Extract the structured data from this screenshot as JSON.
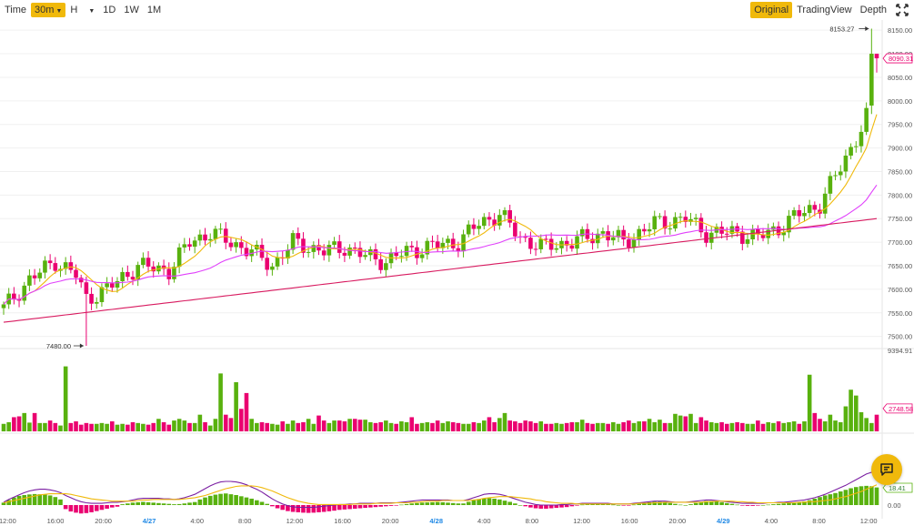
{
  "toolbar": {
    "time_label": "Time",
    "intervals": [
      {
        "label": "30m",
        "active": true,
        "dropdown": true
      },
      {
        "label": "H",
        "active": false,
        "dropdown": true
      },
      {
        "label": "1D",
        "active": false,
        "dropdown": false
      },
      {
        "label": "1W",
        "active": false,
        "dropdown": false
      },
      {
        "label": "1M",
        "active": false,
        "dropdown": false
      }
    ],
    "views": [
      {
        "label": "Original",
        "active": true
      },
      {
        "label": "TradingView",
        "active": false
      },
      {
        "label": "Depth",
        "active": false
      }
    ],
    "expand_icon": "expand-icon"
  },
  "chat_icon": "chat-icon",
  "colors": {
    "up": "#58b10e",
    "down": "#ea0070",
    "ma_short": "#f0b90b",
    "ma_mid": "#e040fb",
    "ma_long": "#d81b60",
    "signal": "#7b1fa2",
    "accent": "#f0b90b",
    "date_tick": "#1e88e5"
  },
  "chart_data": {
    "type": "candlestick",
    "interval": "30m",
    "price_axis": {
      "ticks": [
        "8150.00",
        "8100.00",
        "8050.00",
        "8000.00",
        "7950.00",
        "7900.00",
        "7850.00",
        "7800.00",
        "7750.00",
        "7700.00",
        "7650.00",
        "7600.00",
        "7550.00",
        "7500.00"
      ],
      "range": [
        7480,
        8160
      ]
    },
    "time_axis": {
      "ticks": [
        {
          "label": "12:00",
          "date": false
        },
        {
          "label": "16:00",
          "date": false
        },
        {
          "label": "20:00",
          "date": false
        },
        {
          "label": "4/27",
          "date": true
        },
        {
          "label": "4:00",
          "date": false
        },
        {
          "label": "8:00",
          "date": false
        },
        {
          "label": "12:00",
          "date": false
        },
        {
          "label": "16:00",
          "date": false
        },
        {
          "label": "20:00",
          "date": false
        },
        {
          "label": "4/28",
          "date": true
        },
        {
          "label": "4:00",
          "date": false
        },
        {
          "label": "8:00",
          "date": false
        },
        {
          "label": "12:00",
          "date": false
        },
        {
          "label": "16:00",
          "date": false
        },
        {
          "label": "20:00",
          "date": false
        },
        {
          "label": "4/29",
          "date": true
        },
        {
          "label": "4:00",
          "date": false
        },
        {
          "label": "8:00",
          "date": false
        },
        {
          "label": "12:00",
          "date": false
        }
      ]
    },
    "annotations": {
      "high_label": "8153.27",
      "low_label": "7480.00",
      "high": 8153.27,
      "low": 7480.0
    },
    "last_price_label": "8090.31",
    "last_price": 8090.31,
    "volume": {
      "max_label": "9394.91",
      "max": 9394.91,
      "last_label": "2748.58",
      "last": 2748.58,
      "values": [
        900,
        1100,
        1700,
        1800,
        2200,
        1050,
        2200,
        1000,
        1000,
        1300,
        1000,
        700,
        7800,
        1000,
        1200,
        800,
        1000,
        900,
        900,
        1000,
        900,
        1200,
        800,
        900,
        800,
        1100,
        1000,
        900,
        800,
        1000,
        1500,
        1100,
        800,
        1300,
        1500,
        1300,
        1000,
        1000,
        2000,
        1100,
        700,
        1500,
        6950,
        2000,
        1600,
        5900,
        2700,
        4600,
        1500,
        1000,
        1100,
        1000,
        900,
        800,
        1200,
        900,
        1300,
        1000,
        1100,
        1500,
        900,
        1900,
        1300,
        1000,
        1300,
        1300,
        1200,
        1500,
        1500,
        1400,
        1400,
        1100,
        1000,
        1100,
        1300,
        1000,
        900,
        1200,
        1100,
        1700,
        900,
        1000,
        1100,
        1000,
        1300,
        1000,
        1200,
        1100,
        1000,
        900,
        900,
        1100,
        1000,
        1300,
        1700,
        1100,
        1600,
        2200,
        1300,
        1200,
        1000,
        1300,
        1200,
        1000,
        1200,
        900,
        900,
        1000,
        900,
        1000,
        1100,
        1100,
        1400,
        1000,
        900,
        1000,
        1000,
        900,
        1100,
        900,
        1100,
        1300,
        1000,
        1200,
        1200,
        1500,
        1100,
        1400,
        1000,
        1000,
        2100,
        1900,
        1800,
        2100,
        1000,
        1700,
        1300,
        1100,
        1000,
        1100,
        900,
        1000,
        1100,
        1000,
        900,
        900,
        1300,
        900,
        1100,
        1000,
        1200,
        1000,
        1100,
        1200,
        900,
        1200,
        6800,
        2200,
        1500,
        1200,
        2000,
        1300,
        1100,
        3000,
        5000,
        4300,
        2300,
        1600,
        1000,
        2000,
        1500,
        9394.91,
        2748.58
      ],
      "ma_values": [
        1200,
        1250,
        1300,
        1350,
        1400,
        1380,
        1450,
        1400,
        1350,
        1320,
        1300,
        1250,
        1500,
        1550,
        1500,
        1450,
        1400,
        1350,
        1300,
        1250,
        1200,
        1180,
        1150,
        1120,
        1100,
        1080,
        1060,
        1050,
        1040,
        1050,
        1080,
        1090,
        1080,
        1100,
        1130,
        1150,
        1140,
        1130,
        1180,
        1190,
        1170,
        1200,
        1600,
        1650,
        1680,
        1900,
        2000,
        2200,
        2300,
        2250,
        2200,
        2100,
        1950,
        1700,
        1500,
        1300,
        1200,
        1150,
        1120,
        1150,
        1140,
        1170,
        1180,
        1170,
        1190,
        1200,
        1220,
        1250,
        1280,
        1300,
        1320,
        1300,
        1280,
        1260,
        1250,
        1230,
        1200,
        1190,
        1180,
        1200,
        1190,
        1180,
        1170,
        1150,
        1160,
        1150,
        1150,
        1140,
        1130,
        1110,
        1090,
        1080,
        1080,
        1100,
        1150,
        1160,
        1200,
        1280,
        1300,
        1300,
        1290,
        1280,
        1270,
        1240,
        1220,
        1190,
        1150,
        1120,
        1080,
        1050,
        1060,
        1080,
        1100,
        1090,
        1070,
        1060,
        1050,
        1030,
        1030,
        1020,
        1040,
        1060,
        1070,
        1090,
        1110,
        1150,
        1160,
        1180,
        1170,
        1160,
        1250,
        1320,
        1380,
        1450,
        1430,
        1460,
        1460,
        1440,
        1400,
        1360,
        1300,
        1250,
        1200,
        1150,
        1100,
        1080,
        1070,
        1060,
        1060,
        1050,
        1060,
        1070,
        1080,
        1080,
        1090,
        1100,
        1600,
        1700,
        1760,
        1800,
        1900,
        1950,
        1980,
        2150,
        2500,
        2750,
        2850,
        2900,
        2850,
        2800,
        2750,
        3300,
        3400
      ]
    },
    "macd": {
      "axis_ticks": [
        "18.41",
        "0.00"
      ],
      "last_label": "18.41",
      "last": 18.41,
      "hist": [
        1.2,
        2.5,
        3.8,
        4.6,
        5.0,
        5.3,
        5.5,
        5.4,
        5.2,
        4.8,
        4.0,
        2.8,
        -2.0,
        -3.2,
        -3.8,
        -4.2,
        -4.0,
        -3.6,
        -3.0,
        -2.4,
        -1.8,
        -1.2,
        -0.8,
        0.4,
        0.8,
        1.2,
        1.4,
        1.6,
        1.4,
        1.2,
        1.0,
        0.8,
        0.6,
        0.4,
        0.5,
        0.8,
        1.2,
        1.5,
        2.8,
        3.8,
        4.6,
        5.2,
        5.6,
        5.8,
        5.4,
        5.0,
        4.4,
        3.8,
        3.2,
        2.4,
        1.6,
        0.6,
        -0.6,
        -1.6,
        -2.4,
        -3.0,
        -3.4,
        -3.6,
        -3.8,
        -3.9,
        -3.8,
        -3.6,
        -3.4,
        -3.1,
        -2.8,
        -2.4,
        -2.2,
        -2.0,
        -1.8,
        -1.6,
        -1.4,
        -1.2,
        -1.0,
        -0.8,
        -0.6,
        -0.4,
        -0.2,
        0.2,
        0.5,
        0.8,
        1.0,
        1.2,
        1.3,
        1.4,
        1.5,
        1.4,
        1.2,
        1.0,
        0.8,
        0.8,
        1.6,
        2.4,
        3.0,
        3.4,
        3.4,
        3.2,
        2.8,
        2.2,
        1.6,
        0.8,
        0.0,
        -0.6,
        -1.2,
        -1.6,
        -1.8,
        -1.8,
        -1.6,
        -1.4,
        -1.2,
        -1.0,
        -0.6,
        -0.2,
        0.2,
        0.4,
        0.6,
        0.6,
        0.6,
        0.4,
        0.2,
        0.0,
        -0.2,
        -0.2,
        0.2,
        0.6,
        1.0,
        1.4,
        1.6,
        1.6,
        1.4,
        1.0,
        0.6,
        0.2,
        0.0,
        0.4,
        1.0,
        1.6,
        2.0,
        2.0,
        1.8,
        1.4,
        1.0,
        0.6,
        0.2,
        -0.2,
        -0.4,
        -0.4,
        -0.2,
        0.0,
        0.2,
        0.4,
        0.6,
        0.8,
        1.0,
        1.2,
        1.4,
        1.8,
        2.4,
        3.2,
        4.0,
        4.8,
        5.4,
        6.0,
        6.8,
        7.6,
        8.4,
        9.0,
        9.4,
        9.6,
        9.4,
        8.8,
        8.2,
        7.6,
        7.0,
        6.2,
        7.2
      ],
      "dif": [
        5,
        10,
        14,
        18,
        22,
        25,
        27,
        28,
        28,
        27,
        25,
        22,
        17,
        13,
        9,
        6,
        4,
        3,
        3,
        3,
        4,
        5,
        5,
        6,
        7,
        9,
        11,
        12,
        12,
        12,
        12,
        11,
        11,
        10,
        11,
        13,
        16,
        19,
        24,
        29,
        34,
        38,
        41,
        42,
        42,
        41,
        39,
        36,
        32,
        28,
        23,
        17,
        11,
        6,
        2,
        -1,
        -3,
        -4,
        -4,
        -4,
        -4,
        -3,
        -2,
        -1,
        0,
        1,
        1,
        2,
        2,
        3,
        3,
        3,
        3,
        4,
        4,
        4,
        4,
        5,
        6,
        7,
        8,
        9,
        9,
        9,
        9,
        9,
        9,
        8,
        8,
        8,
        10,
        13,
        16,
        19,
        20,
        20,
        19,
        17,
        14,
        11,
        8,
        5,
        3,
        1,
        0,
        0,
        0,
        0,
        1,
        1,
        2,
        2,
        3,
        3,
        3,
        3,
        3,
        3,
        2,
        2,
        2,
        2,
        3,
        4,
        5,
        6,
        7,
        7,
        7,
        6,
        5,
        5,
        5,
        6,
        7,
        8,
        9,
        9,
        8,
        7,
        6,
        5,
        4,
        3,
        3,
        3,
        3,
        3,
        4,
        4,
        5,
        5,
        6,
        7,
        8,
        9,
        11,
        13,
        16,
        19,
        23,
        27,
        31,
        35,
        40,
        45,
        50,
        55,
        58,
        61,
        63,
        64,
        66,
        70,
        75
      ],
      "dea": [
        4,
        6,
        8,
        10,
        12,
        14,
        16,
        18,
        19,
        20,
        20,
        20,
        20,
        19,
        17,
        15,
        13,
        11,
        10,
        9,
        8,
        7,
        7,
        7,
        7,
        7,
        8,
        9,
        9,
        10,
        10,
        10,
        10,
        10,
        10,
        11,
        12,
        13,
        15,
        17,
        20,
        23,
        26,
        29,
        31,
        33,
        34,
        34,
        34,
        33,
        31,
        28,
        25,
        21,
        17,
        13,
        10,
        7,
        5,
        3,
        2,
        1,
        1,
        1,
        1,
        1,
        1,
        1,
        2,
        2,
        2,
        2,
        3,
        3,
        3,
        3,
        4,
        4,
        4,
        5,
        5,
        6,
        7,
        7,
        7,
        8,
        8,
        8,
        8,
        8,
        8,
        9,
        10,
        12,
        13,
        14,
        15,
        15,
        15,
        14,
        13,
        12,
        11,
        9,
        8,
        6,
        5,
        4,
        3,
        3,
        3,
        2,
        2,
        2,
        2,
        2,
        2,
        2,
        2,
        2,
        2,
        2,
        2,
        3,
        3,
        3,
        4,
        4,
        5,
        5,
        5,
        5,
        5,
        5,
        5,
        5,
        6,
        6,
        7,
        7,
        7,
        7,
        6,
        6,
        5,
        5,
        4,
        4,
        4,
        4,
        4,
        4,
        4,
        4,
        5,
        5,
        6,
        6,
        7,
        8,
        9,
        11,
        13,
        15,
        18,
        21,
        24,
        28,
        32,
        36,
        40,
        43,
        46,
        49,
        52,
        55,
        57
      ]
    }
  }
}
